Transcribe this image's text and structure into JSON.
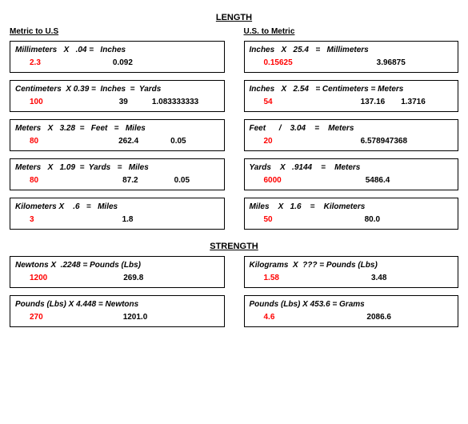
{
  "section1": {
    "title": "LENGTH"
  },
  "section2": {
    "title": "STRENGTH"
  },
  "left_header": "Metric to U.S",
  "right_header": "U.S. to Metric",
  "left": [
    {
      "formula": "Millimeters   X   .04 =   Inches",
      "input": "2.3",
      "out1": "0.092",
      "out2": "",
      "in_pad": 18,
      "o1_pad": 90
    },
    {
      "formula": "Centimeters  X 0.39 =  Inches  =  Yards",
      "input": "100",
      "out1": "39",
      "out2": "1.083333333",
      "in_pad": 18,
      "o1_pad": 95,
      "o2_pad": 30
    },
    {
      "formula": "Meters   X   3.28  =   Feet   =   Miles",
      "input": "80",
      "out1": "262.4",
      "out2": "0.05",
      "in_pad": 18,
      "o1_pad": 100,
      "o2_pad": 40
    },
    {
      "formula": "Meters   X   1.09  =  Yards   =   Miles",
      "input": "80",
      "out1": "87.2",
      "out2": "0.05",
      "in_pad": 18,
      "o1_pad": 105,
      "o2_pad": 45
    },
    {
      "formula": "Kilometers X    .6   =   Miles",
      "input": "3",
      "out1": "1.8",
      "out2": "",
      "in_pad": 18,
      "o1_pad": 110
    }
  ],
  "right": [
    {
      "formula": "Inches   X   25.4   =   Millimeters",
      "input": "0.15625",
      "out1": "3.96875",
      "out2": "",
      "in_pad": 18,
      "o1_pad": 105
    },
    {
      "formula": "Inches   X   2.54   = Centimeters = Meters",
      "input": "54",
      "out1": "137.16",
      "out2": "1.3716",
      "in_pad": 18,
      "o1_pad": 110,
      "o2_pad": 20
    },
    {
      "formula": "Feet      /    3.04    =    Meters",
      "input": "20",
      "out1": "6.578947368",
      "out2": "",
      "in_pad": 18,
      "o1_pad": 110
    },
    {
      "formula": "Yards    X   .9144    =    Meters",
      "input": "6000",
      "out1": "5486.4",
      "out2": "",
      "in_pad": 18,
      "o1_pad": 105
    },
    {
      "formula": "Miles    X   1.6    =    Kilometers",
      "input": "50",
      "out1": "80.0",
      "out2": "",
      "in_pad": 18,
      "o1_pad": 115
    }
  ],
  "strength_left": [
    {
      "formula": "Newtons X  .2248 = Pounds (Lbs)",
      "input": "1200",
      "out1": "269.8",
      "out2": "",
      "in_pad": 18,
      "o1_pad": 95
    },
    {
      "formula": "Pounds (Lbs) X 4.448 = Newtons",
      "input": "270",
      "out1": "1201.0",
      "out2": "",
      "in_pad": 18,
      "o1_pad": 100
    }
  ],
  "strength_right": [
    {
      "formula": "Kilograms  X  ??? = Pounds (Lbs)",
      "input": "1.58",
      "out1": "3.48",
      "out2": "",
      "in_pad": 18,
      "o1_pad": 115
    },
    {
      "formula": "Pounds (Lbs) X 453.6 = Grams",
      "input": "4.6",
      "out1": "2086.6",
      "out2": "",
      "in_pad": 18,
      "o1_pad": 115
    }
  ]
}
